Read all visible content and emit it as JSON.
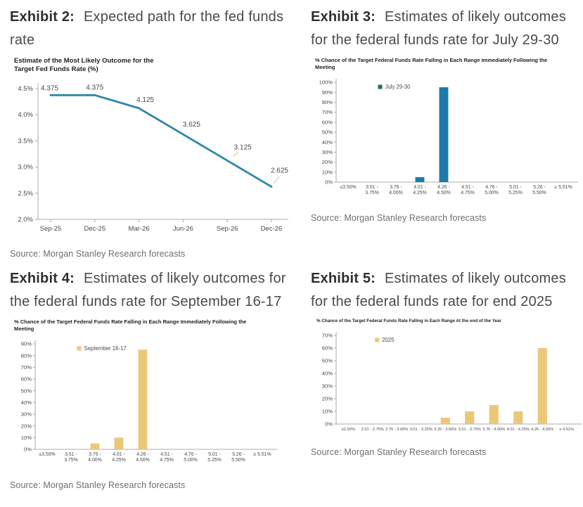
{
  "page": {
    "background": "#ffffff"
  },
  "exhibits": [
    {
      "label": "Exhibit 2:",
      "title": "Expected path for the fed funds rate",
      "chart_title": "Estimate of the Most Likely Outcome for the Target Fed Funds Rate (%)",
      "source": "Source: Morgan Stanley Research forecasts"
    },
    {
      "label": "Exhibit 3:",
      "title": "Estimates of likely outcomes for the federal funds rate for July 29-30",
      "chart_title": "% Chance of the Target Federal Funds Rate Falling in Each Range Immediately Following the Meeting",
      "source": "Source: Morgan Stanley Research forecasts"
    },
    {
      "label": "Exhibit 4:",
      "title": "Estimates of likely outcomes for the federal funds rate for September 16-17",
      "chart_title": "% Chance of the Target Federal Funds Rate Falling in Each Range Immediately Following the Meeting",
      "source": "Source: Morgan Stanley Research forecasts"
    },
    {
      "label": "Exhibit 5:",
      "title": "Estimates of likely outcomes for the federal funds rate for end 2025",
      "chart_title": "% Chance of the Target Federal Funds Rate Falling in Each Range At the end of the Year",
      "source": "Source: Morgan Stanley Research forecasts"
    }
  ],
  "chart_data": [
    {
      "type": "line",
      "title": "Estimate of the Most Likely Outcome for the Target Fed Funds Rate (%)",
      "x": [
        "Sep-25",
        "Dec-25",
        "Mar-26",
        "Jun-26",
        "Sep-26",
        "Dec-26"
      ],
      "values": [
        4.375,
        4.375,
        4.125,
        3.625,
        3.125,
        2.625
      ],
      "point_labels": [
        "4.375",
        "4.375",
        "4.125",
        "3.625",
        "3.125",
        "2.625"
      ],
      "ylim": [
        2.0,
        4.5
      ],
      "ytick_step": 0.5,
      "ytick_format": "percent1",
      "grid": false,
      "line_color": "#2e86ab"
    },
    {
      "type": "bar",
      "title": "% Chance of the Target Federal Funds Rate Falling in Each Range Immediately Following the Meeting",
      "categories": [
        "≤3.50%",
        "3.51 -|3.75%",
        "3.76 -|4.00%",
        "4.01 -|4.25%",
        "4.26 -|4.50%",
        "4.51 -|4.75%",
        "4.76 -|5.00%",
        "5.01 -|5.25%",
        "5.26 -|5.50%",
        "≥ 5.51%"
      ],
      "values": [
        0,
        0,
        0,
        5,
        95,
        0,
        0,
        0,
        0,
        0
      ],
      "ylim": [
        0,
        100
      ],
      "ytick_step": 10,
      "grid": false,
      "legend": "July 29-30",
      "legend_position": "top-left",
      "color": "#1e7aab",
      "legend_color": "#1b6e63"
    },
    {
      "type": "bar",
      "title": "% Chance of the Target Federal Funds Rate Falling in Each Range Immediately Following the Meeting",
      "categories": [
        "≤3.50%",
        "3.51 -|3.75%",
        "3.76 -|4.00%",
        "4.01 -|4.25%",
        "4.26 -|4.50%",
        "4.51 -|4.75%",
        "4.76 -|5.00%",
        "5.01 -|5.25%",
        "5.26 -|5.50%",
        "≥ 5.51%"
      ],
      "values": [
        0,
        0,
        5,
        10,
        85,
        0,
        0,
        0,
        0,
        0
      ],
      "ylim": [
        0,
        90
      ],
      "ytick_step": 10,
      "grid": false,
      "legend": "September 16-17",
      "legend_position": "top-left",
      "color": "#ebc878",
      "legend_color": "#ebc878"
    },
    {
      "type": "bar",
      "title": "% Chance of the Target Federal Funds Rate Falling in Each Range At the end of the Year",
      "categories": [
        "≤2.50%",
        "2.51 - 2.75%",
        "2.76 - 3.00%",
        "3.01 - 3.25%",
        "3.26 - 3.50%",
        "3.51 - 3.75%",
        "3.76 - 4.00%",
        "4.01 - 4.25%",
        "4.26 - 4.50%",
        "≥ 4.51%"
      ],
      "values": [
        0,
        0,
        0,
        0,
        5,
        10,
        15,
        10,
        60,
        0
      ],
      "ylim": [
        0,
        70
      ],
      "ytick_step": 10,
      "grid": false,
      "legend": "2025",
      "legend_position": "top-left",
      "color": "#ebc878",
      "legend_color": "#ebc878"
    }
  ]
}
